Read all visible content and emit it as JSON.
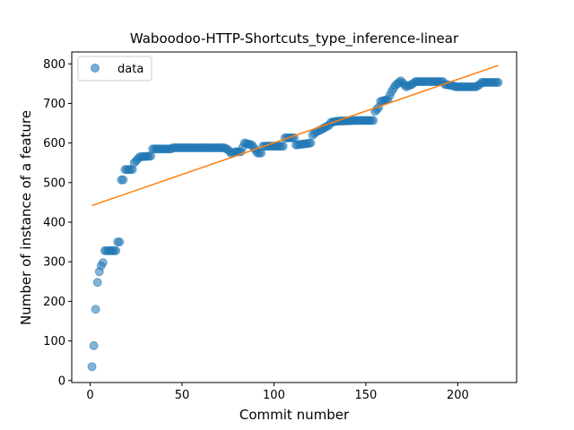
{
  "chart_data": {
    "type": "scatter",
    "title": "Waboodoo-HTTP-Shortcuts_type_inference-linear",
    "xlabel": "Commit number",
    "ylabel": "Number of instance of a feature",
    "xlim": [
      -10,
      232
    ],
    "ylim": [
      -5,
      830
    ],
    "xticks": [
      0,
      50,
      100,
      150,
      200
    ],
    "yticks": [
      0,
      100,
      200,
      300,
      400,
      500,
      600,
      700,
      800
    ],
    "legend": {
      "placement": "top-left",
      "entries": [
        "data"
      ]
    },
    "colors": {
      "data": "#1f77b4",
      "fit": "#ff7f0e"
    },
    "series": [
      {
        "name": "data",
        "kind": "scatter",
        "breakpoints": [
          [
            1,
            35
          ],
          [
            2,
            88
          ],
          [
            3,
            180
          ],
          [
            4,
            248
          ],
          [
            5,
            275
          ],
          [
            6,
            290
          ],
          [
            7,
            298
          ],
          [
            8,
            328
          ],
          [
            14,
            328
          ],
          [
            15,
            350
          ],
          [
            16,
            350
          ],
          [
            17,
            507
          ],
          [
            18,
            507
          ],
          [
            19,
            533
          ],
          [
            23,
            533
          ],
          [
            24,
            550
          ],
          [
            26,
            560
          ],
          [
            27,
            565
          ],
          [
            33,
            567
          ],
          [
            34,
            585
          ],
          [
            44,
            585
          ],
          [
            45,
            588
          ],
          [
            73,
            588
          ],
          [
            75,
            583
          ],
          [
            77,
            573
          ],
          [
            79,
            578
          ],
          [
            82,
            578
          ],
          [
            84,
            600
          ],
          [
            88,
            595
          ],
          [
            91,
            575
          ],
          [
            93,
            575
          ],
          [
            94,
            592
          ],
          [
            105,
            592
          ],
          [
            106,
            613
          ],
          [
            111,
            613
          ],
          [
            112,
            595
          ],
          [
            120,
            600
          ],
          [
            121,
            620
          ],
          [
            123,
            628
          ],
          [
            125,
            632
          ],
          [
            130,
            645
          ],
          [
            131,
            652
          ],
          [
            134,
            655
          ],
          [
            145,
            657
          ],
          [
            154,
            657
          ],
          [
            155,
            680
          ],
          [
            157,
            690
          ],
          [
            158,
            705
          ],
          [
            162,
            710
          ],
          [
            164,
            730
          ],
          [
            166,
            745
          ],
          [
            169,
            757
          ],
          [
            172,
            742
          ],
          [
            175,
            748
          ],
          [
            177,
            755
          ],
          [
            192,
            755
          ],
          [
            193,
            748
          ],
          [
            197,
            745
          ],
          [
            199,
            742
          ],
          [
            210,
            742
          ],
          [
            212,
            748
          ],
          [
            213,
            753
          ],
          [
            222,
            753
          ]
        ]
      },
      {
        "name": "",
        "kind": "line",
        "x": [
          1,
          222
        ],
        "y": [
          442,
          796
        ]
      }
    ]
  }
}
